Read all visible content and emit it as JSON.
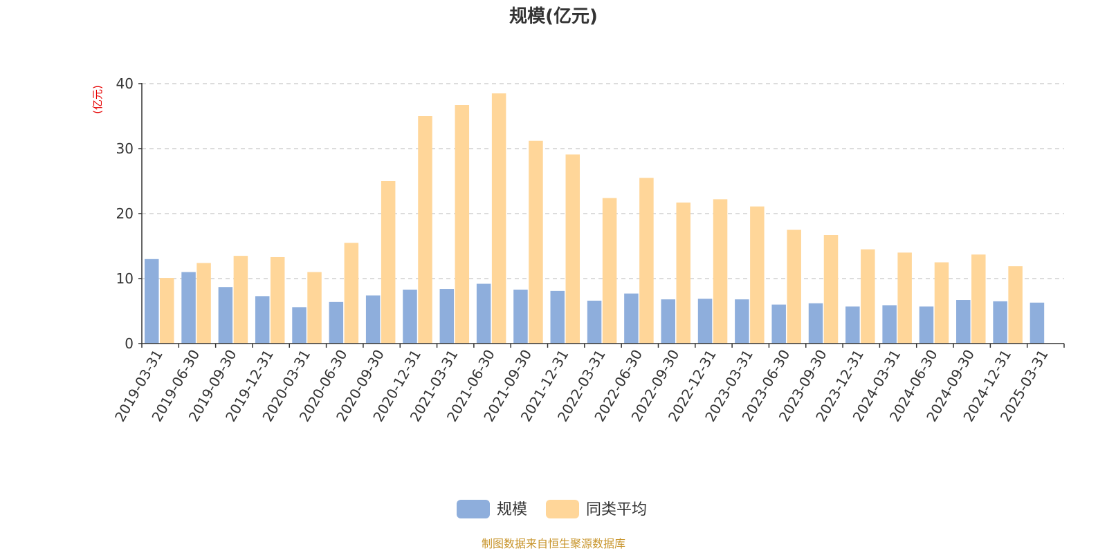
{
  "chart_data": {
    "type": "bar",
    "title": "规模(亿元)",
    "y_unit_label": "(亿元)",
    "ylim": [
      0,
      40
    ],
    "yticks": [
      0,
      10,
      20,
      30,
      40
    ],
    "grid": true,
    "legend_position": "bottom-center",
    "categories": [
      "2019-03-31",
      "2019-06-30",
      "2019-09-30",
      "2019-12-31",
      "2020-03-31",
      "2020-06-30",
      "2020-09-30",
      "2020-12-31",
      "2021-03-31",
      "2021-06-30",
      "2021-09-30",
      "2021-12-31",
      "2022-03-31",
      "2022-06-30",
      "2022-09-30",
      "2022-12-31",
      "2023-03-31",
      "2023-06-30",
      "2023-09-30",
      "2023-12-31",
      "2024-03-31",
      "2024-06-30",
      "2024-09-30",
      "2024-12-31",
      "2025-03-31"
    ],
    "series": [
      {
        "name": "规模",
        "color": "#8eaedc",
        "values": [
          13.0,
          11.0,
          8.7,
          7.3,
          5.6,
          6.4,
          7.4,
          8.3,
          8.4,
          9.2,
          8.3,
          8.1,
          6.6,
          7.7,
          6.8,
          6.9,
          6.8,
          6.0,
          6.2,
          5.7,
          5.9,
          5.7,
          6.7,
          6.5,
          6.3
        ]
      },
      {
        "name": "同类平均",
        "color": "#ffd699",
        "values": [
          10.1,
          12.4,
          13.5,
          13.3,
          11.0,
          15.5,
          25.0,
          35.0,
          36.7,
          38.5,
          31.2,
          29.1,
          22.4,
          25.5,
          21.7,
          22.2,
          21.1,
          17.5,
          16.7,
          14.5,
          14.0,
          12.5,
          13.7,
          11.9,
          null
        ]
      }
    ]
  },
  "footer": {
    "source_text": "制图数据来自恒生聚源数据库"
  }
}
